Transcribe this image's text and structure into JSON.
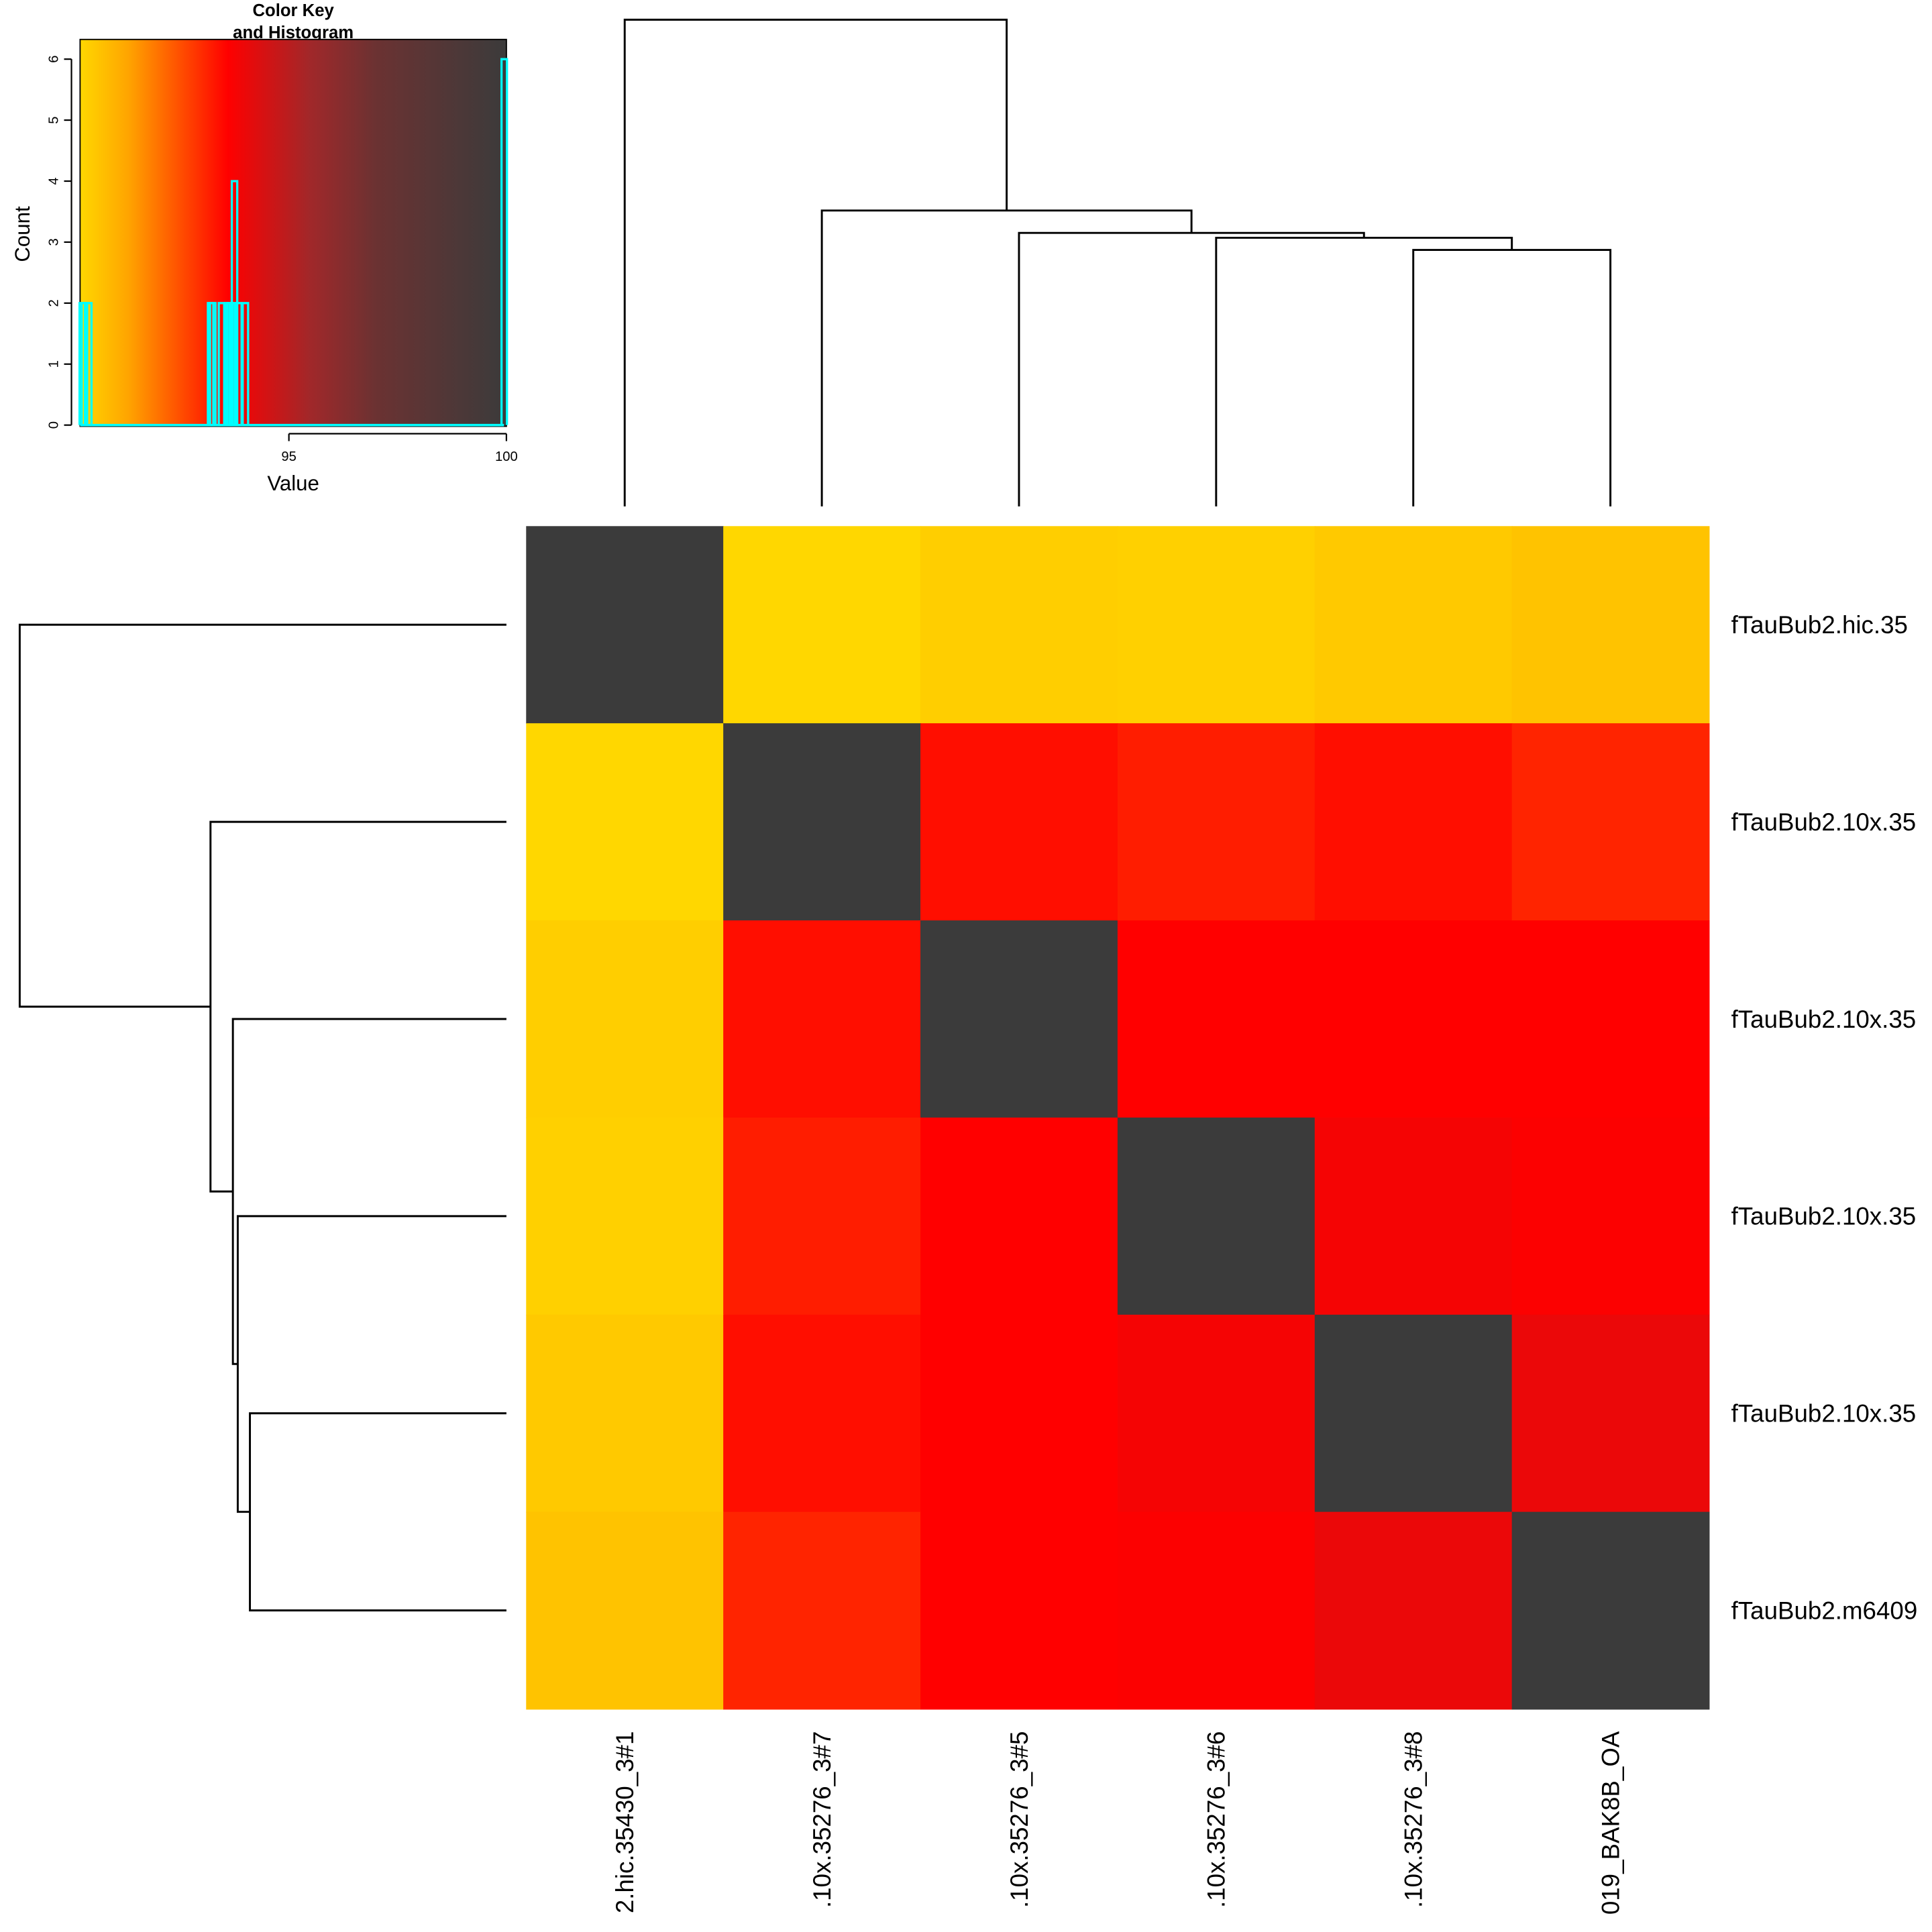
{
  "chart_data": [
    {
      "type": "heatmap",
      "title": "",
      "row_labels": [
        "fTauBub2.hic.35",
        "fTauBub2.10x.35",
        "fTauBub2.10x.35",
        "fTauBub2.10x.35",
        "fTauBub2.10x.35",
        "fTauBub2.m6409"
      ],
      "col_labels": [
        "2.hic.35430_3#1",
        ".10x.35276_3#7",
        ".10x.35276_3#5",
        ".10x.35276_3#6",
        ".10x.35276_3#8",
        "019_BAK8B_OA"
      ],
      "values": [
        [
          100,
          90.2,
          90.4,
          90.35,
          90.5,
          90.65
        ],
        [
          90.2,
          100,
          93.4,
          93.2,
          93.4,
          93.1
        ],
        [
          90.4,
          93.4,
          100,
          93.6,
          93.6,
          93.6
        ],
        [
          90.35,
          93.2,
          93.6,
          100,
          93.8,
          93.65
        ],
        [
          90.5,
          93.4,
          93.6,
          93.8,
          100,
          94.0
        ],
        [
          90.65,
          93.1,
          93.6,
          93.65,
          94.0,
          100
        ]
      ],
      "palette": [
        {
          "value": 90.2,
          "color": "#FFD700"
        },
        {
          "value": 91.3,
          "color": "#FFA500"
        },
        {
          "value": 93.6,
          "color": "#FF0000"
        },
        {
          "value": 95.5,
          "color": "#A0282A"
        },
        {
          "value": 97.0,
          "color": "#6B3232"
        },
        {
          "value": 100,
          "color": "#3B3B3B"
        }
      ],
      "dendrogram_merges_relative_height": [
        {
          "left": 4,
          "right": 5,
          "height": 0.527
        },
        {
          "left": 3,
          "right": "m1",
          "height": 0.552
        },
        {
          "left": 2,
          "right": "m2",
          "height": 0.562
        },
        {
          "left": 1,
          "right": "m3",
          "height": 0.608
        },
        {
          "left": 0,
          "right": "m4",
          "height": 1.0
        }
      ]
    },
    {
      "type": "bar",
      "title": "Color Key",
      "subtitle": "and Histogram",
      "xlabel": "Value",
      "ylabel": "Count",
      "xlim": [
        90.2,
        100
      ],
      "ylim": [
        0,
        6.3
      ],
      "x_ticks": [
        "95",
        "100"
      ],
      "y_ticks": [
        "0",
        "1",
        "2",
        "3",
        "4",
        "5",
        "6"
      ],
      "histogram_color": "#00FFFF",
      "bins": [
        {
          "x": 90.25,
          "count": 2
        },
        {
          "x": 90.3,
          "count": 2
        },
        {
          "x": 90.4,
          "count": 2
        },
        {
          "x": 93.2,
          "count": 2
        },
        {
          "x": 93.25,
          "count": 2
        },
        {
          "x": 93.45,
          "count": 2
        },
        {
          "x": 93.6,
          "count": 2
        },
        {
          "x": 93.65,
          "count": 2
        },
        {
          "x": 93.7,
          "count": 2
        },
        {
          "x": 93.75,
          "count": 4
        },
        {
          "x": 93.85,
          "count": 2
        },
        {
          "x": 94.0,
          "count": 2
        },
        {
          "x": 99.95,
          "count": 6
        }
      ]
    }
  ]
}
